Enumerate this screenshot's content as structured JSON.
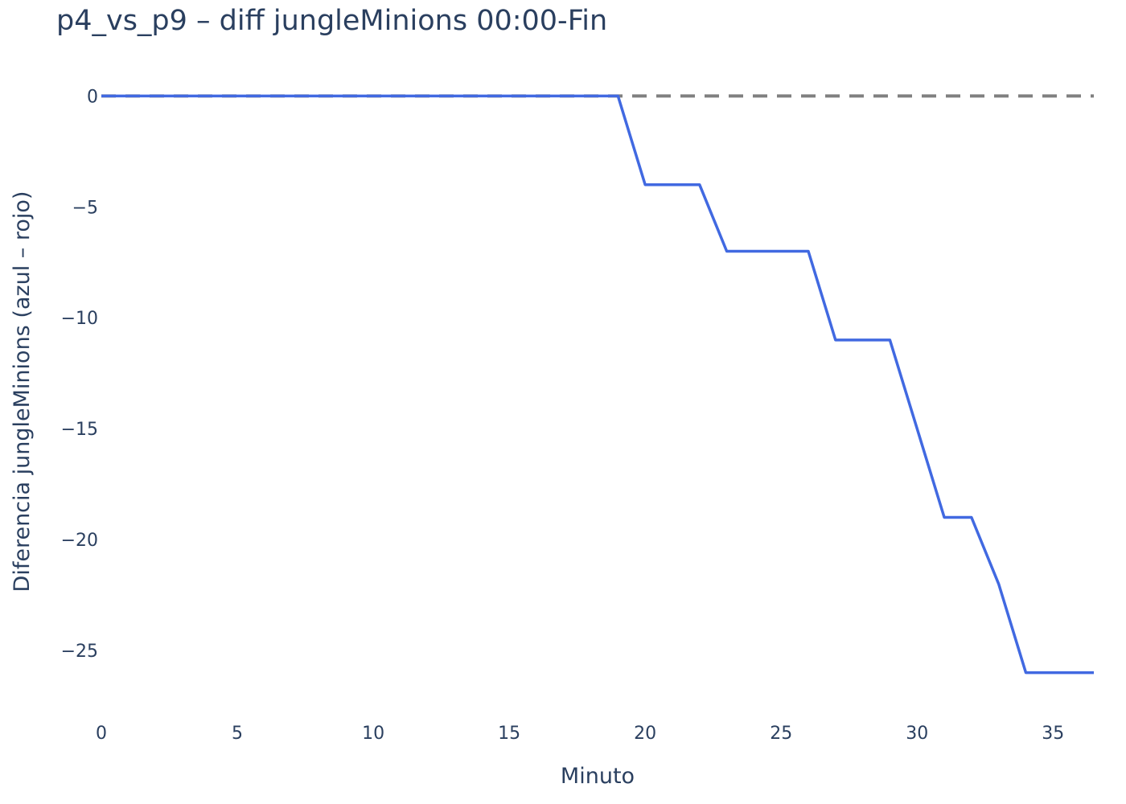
{
  "chart_data": {
    "type": "line",
    "title": "p4_vs_p9 – diff jungleMinions 00:00-Fin",
    "xlabel": "Minuto",
    "ylabel": "Diferencia jungleMinions (azul – rojo)",
    "xlim": [
      0,
      36.5
    ],
    "ylim": [
      -27.5,
      1.5
    ],
    "x_ticks": [
      0,
      5,
      10,
      15,
      20,
      25,
      30,
      35
    ],
    "x_tick_labels": [
      "0",
      "5",
      "10",
      "15",
      "20",
      "25",
      "30",
      "35"
    ],
    "y_ticks": [
      0,
      -5,
      -10,
      -15,
      -20,
      -25
    ],
    "y_tick_labels": [
      "0",
      "−5",
      "−10",
      "−15",
      "−20",
      "−25"
    ],
    "grid": false,
    "reference_line": {
      "y": 0,
      "style": "dashed",
      "color": "#808080"
    },
    "series": [
      {
        "color": "#4169e1",
        "x": [
          0,
          1,
          2,
          3,
          4,
          5,
          6,
          7,
          8,
          9,
          10,
          11,
          12,
          13,
          14,
          15,
          16,
          17,
          18,
          19,
          20,
          21,
          22,
          23,
          24,
          25,
          26,
          27,
          28,
          29,
          30,
          31,
          32,
          33,
          34,
          35,
          36.5
        ],
        "y": [
          0,
          0,
          0,
          0,
          0,
          0,
          0,
          0,
          0,
          0,
          0,
          0,
          0,
          0,
          0,
          0,
          0,
          0,
          0,
          0,
          -4,
          -4,
          -4,
          -7,
          -7,
          -7,
          -7,
          -11,
          -11,
          -11,
          -15,
          -19,
          -19,
          -22,
          -26,
          -26,
          -26
        ]
      }
    ]
  }
}
